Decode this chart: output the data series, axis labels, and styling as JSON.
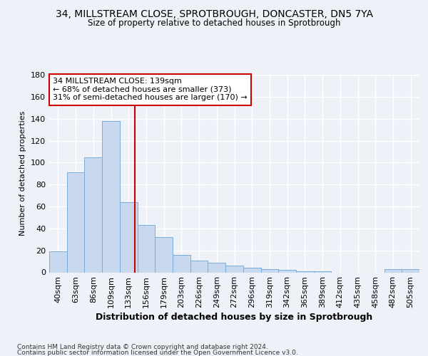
{
  "title_line1": "34, MILLSTREAM CLOSE, SPROTBROUGH, DONCASTER, DN5 7YA",
  "title_line2": "Size of property relative to detached houses in Sprotbrough",
  "xlabel": "Distribution of detached houses by size in Sprotbrough",
  "ylabel": "Number of detached properties",
  "categories": [
    "40sqm",
    "63sqm",
    "86sqm",
    "109sqm",
    "133sqm",
    "156sqm",
    "179sqm",
    "203sqm",
    "226sqm",
    "249sqm",
    "272sqm",
    "296sqm",
    "319sqm",
    "342sqm",
    "365sqm",
    "389sqm",
    "412sqm",
    "435sqm",
    "458sqm",
    "482sqm",
    "505sqm"
  ],
  "values": [
    19,
    91,
    105,
    138,
    64,
    43,
    32,
    16,
    11,
    9,
    6,
    4,
    3,
    2,
    1,
    1,
    0,
    0,
    0,
    3,
    3
  ],
  "bar_color": "#c8d8ee",
  "bar_edge_color": "#7aadda",
  "annotation_line1": "34 MILLSTREAM CLOSE: 139sqm",
  "annotation_line2": "← 68% of detached houses are smaller (373)",
  "annotation_line3": "31% of semi-detached houses are larger (170) →",
  "vline_color": "#cc0000",
  "vline_x": 4.35,
  "annotation_box_facecolor": "#ffffff",
  "annotation_box_edgecolor": "#cc0000",
  "ylim": [
    0,
    180
  ],
  "yticks": [
    0,
    20,
    40,
    60,
    80,
    100,
    120,
    140,
    160,
    180
  ],
  "background_color": "#eef2f8",
  "grid_color": "#ffffff",
  "footer_line1": "Contains HM Land Registry data © Crown copyright and database right 2024.",
  "footer_line2": "Contains public sector information licensed under the Open Government Licence v3.0."
}
